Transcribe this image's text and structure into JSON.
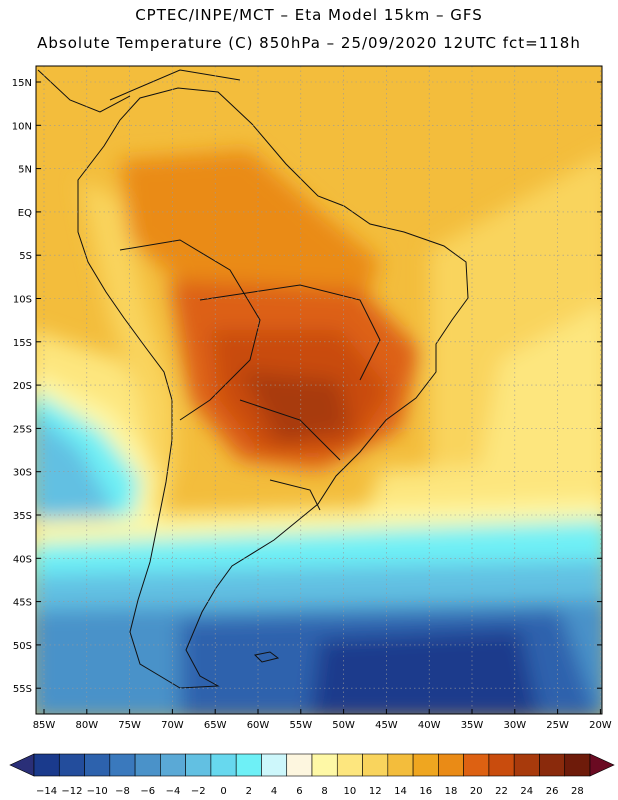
{
  "header": {
    "line1": "CPTEC/INPE/MCT –  Eta Model 15km – GFS",
    "line2": "Absolute Temperature (C) 850hPa – 25/09/2020 12UTC fct=118h"
  },
  "map": {
    "lat_labels": [
      "15N",
      "10N",
      "5N",
      "EQ",
      "5S",
      "10S",
      "15S",
      "20S",
      "25S",
      "30S",
      "35S",
      "40S",
      "45S",
      "50S",
      "55S"
    ],
    "lon_labels": [
      "85W",
      "80W",
      "75W",
      "70W",
      "65W",
      "60W",
      "55W",
      "50W",
      "45W",
      "40W",
      "35W",
      "30W",
      "25W",
      "20W"
    ]
  },
  "colorbar": {
    "labels": [
      "−14",
      "−12",
      "−10",
      "−8",
      "−6",
      "−4",
      "−2",
      "0",
      "2",
      "4",
      "6",
      "8",
      "10",
      "12",
      "14",
      "16",
      "18",
      "20",
      "22",
      "24",
      "26",
      "28"
    ],
    "colors": [
      "#1a3a8c",
      "#234d9c",
      "#2d62ad",
      "#3a79bd",
      "#4a92c9",
      "#5aa9d6",
      "#62c0e2",
      "#67d8ee",
      "#6ef0f6",
      "#cdf7fb",
      "#fdf6df",
      "#fef8a6",
      "#fde67e",
      "#f9d45d",
      "#f3bd3c",
      "#efa620",
      "#ea8b16",
      "#dd6112",
      "#c94c0d",
      "#a83a0c",
      "#8a2a0c",
      "#6e1b0a"
    ],
    "low_arrow_color": "#2a2f78",
    "high_arrow_color": "#6a0a22"
  }
}
